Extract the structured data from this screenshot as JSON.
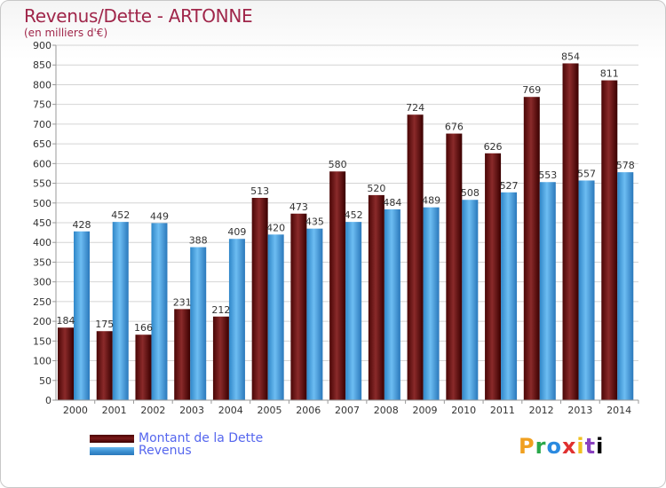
{
  "chart_data": {
    "type": "bar",
    "title": "Revenus/Dette - ARTONNE",
    "subtitle": "(en milliers d'€)",
    "categories": [
      "2000",
      "2001",
      "2002",
      "2003",
      "2004",
      "2005",
      "2006",
      "2007",
      "2008",
      "2009",
      "2010",
      "2011",
      "2012",
      "2013",
      "2014"
    ],
    "series": [
      {
        "name": "Montant de la Dette",
        "color": "#6b0d0d",
        "values": [
          184,
          175,
          166,
          231,
          212,
          513,
          473,
          580,
          520,
          724,
          676,
          626,
          769,
          854,
          811
        ]
      },
      {
        "name": "Revenus",
        "color": "#3d97dc",
        "values": [
          428,
          452,
          449,
          388,
          409,
          420,
          435,
          452,
          484,
          489,
          508,
          527,
          553,
          557,
          578
        ]
      }
    ],
    "ylim": [
      0,
      900
    ],
    "yticks": [
      0,
      50,
      100,
      150,
      200,
      250,
      300,
      350,
      400,
      450,
      500,
      550,
      600,
      650,
      700,
      750,
      800,
      850,
      900
    ],
    "grid": true,
    "legend_position": "bottom-left"
  },
  "brand": {
    "letters": [
      "P",
      "r",
      "o",
      "x",
      "i",
      "t",
      "i"
    ]
  }
}
